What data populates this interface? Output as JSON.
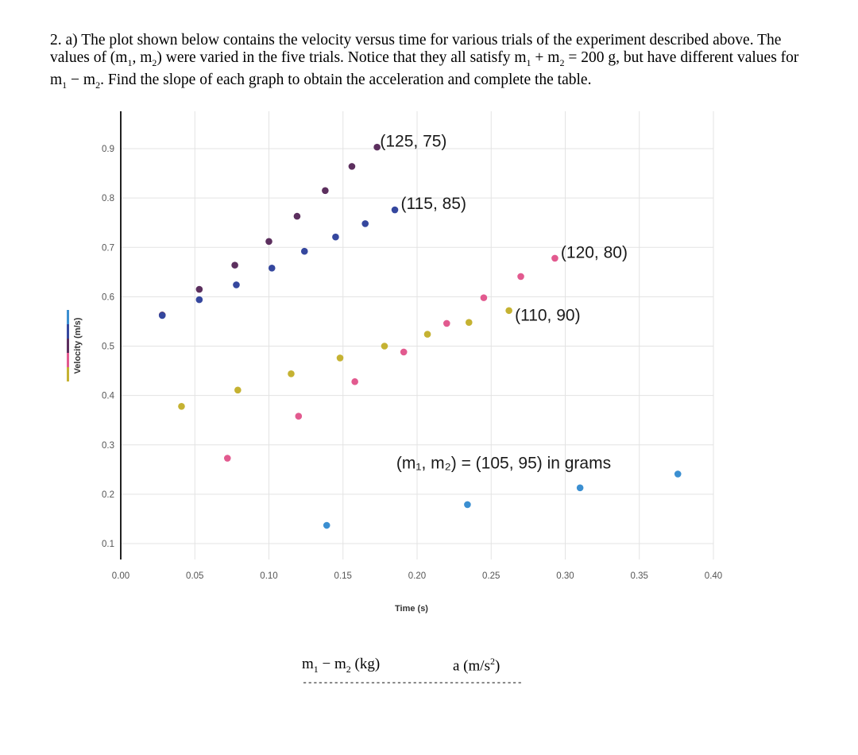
{
  "question": {
    "number": "2. a)",
    "text_1": "The plot shown below contains the velocity versus time for various trials of the experiment described above. The values of (m",
    "text_2": ", m",
    "text_3": ") were varied in the five trials. Notice that they all satisfy m",
    "text_4": " + m",
    "text_5": " = 200 g, but have different values for m",
    "text_6": " − m",
    "text_7": ". Find the slope of each graph to obtain the acceleration and complete the table.",
    "sub1": "1",
    "sub2": "2"
  },
  "chart_data": {
    "type": "scatter",
    "xlabel": "Time (s)",
    "ylabel": "Velocity (m/s)",
    "xlim": [
      0,
      0.4
    ],
    "ylim": [
      0.06,
      0.99
    ],
    "x_ticks": [
      0.0,
      0.05,
      0.1,
      0.15,
      0.2,
      0.25,
      0.3,
      0.35,
      0.4
    ],
    "x_tick_labels": [
      "0.00",
      "0.05",
      "0.10",
      "0.15",
      "0.20",
      "0.25",
      "0.30",
      "0.35",
      "0.40"
    ],
    "y_ticks": [
      0.1,
      0.2,
      0.3,
      0.4,
      0.5,
      0.6,
      0.7,
      0.8,
      0.9
    ],
    "y_tick_labels": [
      "0.1",
      "0.2",
      "0.3",
      "0.4",
      "0.5",
      "0.6",
      "0.7",
      "0.8",
      "0.9"
    ],
    "grid": true,
    "legend_swatch_colors": [
      "#3b8fd1",
      "#35479e",
      "#5c2f5e",
      "#e25a8f",
      "#c5b232"
    ],
    "series": [
      {
        "color": "#5c2f5e",
        "points": [
          [
            0.028,
            0.563
          ],
          [
            0.053,
            0.615
          ],
          [
            0.077,
            0.664
          ],
          [
            0.1,
            0.712
          ],
          [
            0.119,
            0.763
          ],
          [
            0.138,
            0.815
          ],
          [
            0.156,
            0.864
          ],
          [
            0.173,
            0.903
          ]
        ]
      },
      {
        "color": "#35479e",
        "points": [
          [
            0.028,
            0.562
          ],
          [
            0.053,
            0.594
          ],
          [
            0.078,
            0.624
          ],
          [
            0.102,
            0.658
          ],
          [
            0.124,
            0.692
          ],
          [
            0.145,
            0.721
          ],
          [
            0.165,
            0.748
          ],
          [
            0.185,
            0.776
          ]
        ]
      },
      {
        "color": "#e25a8f",
        "points": [
          [
            0.072,
            0.273
          ],
          [
            0.12,
            0.358
          ],
          [
            0.158,
            0.428
          ],
          [
            0.191,
            0.488
          ],
          [
            0.22,
            0.546
          ],
          [
            0.245,
            0.598
          ],
          [
            0.27,
            0.641
          ],
          [
            0.293,
            0.678
          ]
        ]
      },
      {
        "color": "#c5b232",
        "points": [
          [
            0.041,
            0.378
          ],
          [
            0.079,
            0.411
          ],
          [
            0.115,
            0.444
          ],
          [
            0.148,
            0.476
          ],
          [
            0.178,
            0.5
          ],
          [
            0.207,
            0.524
          ],
          [
            0.235,
            0.548
          ],
          [
            0.262,
            0.572
          ]
        ]
      },
      {
        "color": "#3b8fd1",
        "points": [
          [
            0.139,
            0.137
          ],
          [
            0.234,
            0.179
          ],
          [
            0.31,
            0.213
          ],
          [
            0.376,
            0.241
          ]
        ]
      }
    ],
    "annotations": [
      {
        "text": "(125, 75)",
        "x": 0.175,
        "y": 0.915
      },
      {
        "text": "(115, 85)",
        "x": 0.189,
        "y": 0.789
      },
      {
        "text": "(120, 80)",
        "x": 0.297,
        "y": 0.69
      },
      {
        "text": "(110, 90)",
        "x": 0.266,
        "y": 0.563
      },
      {
        "text": "(m₁, m₂) = (105, 95) in grams",
        "x": 0.186,
        "y": 0.263
      }
    ]
  },
  "table": {
    "col1": "m",
    "col1_sub1": "1",
    "col1_mid": " − m",
    "col1_sub2": "2",
    "col1_unit": " (kg)",
    "col2": "a (m/s",
    "col2_sup": "2",
    "col2_end": ")",
    "rule": "------------------------------------------"
  }
}
